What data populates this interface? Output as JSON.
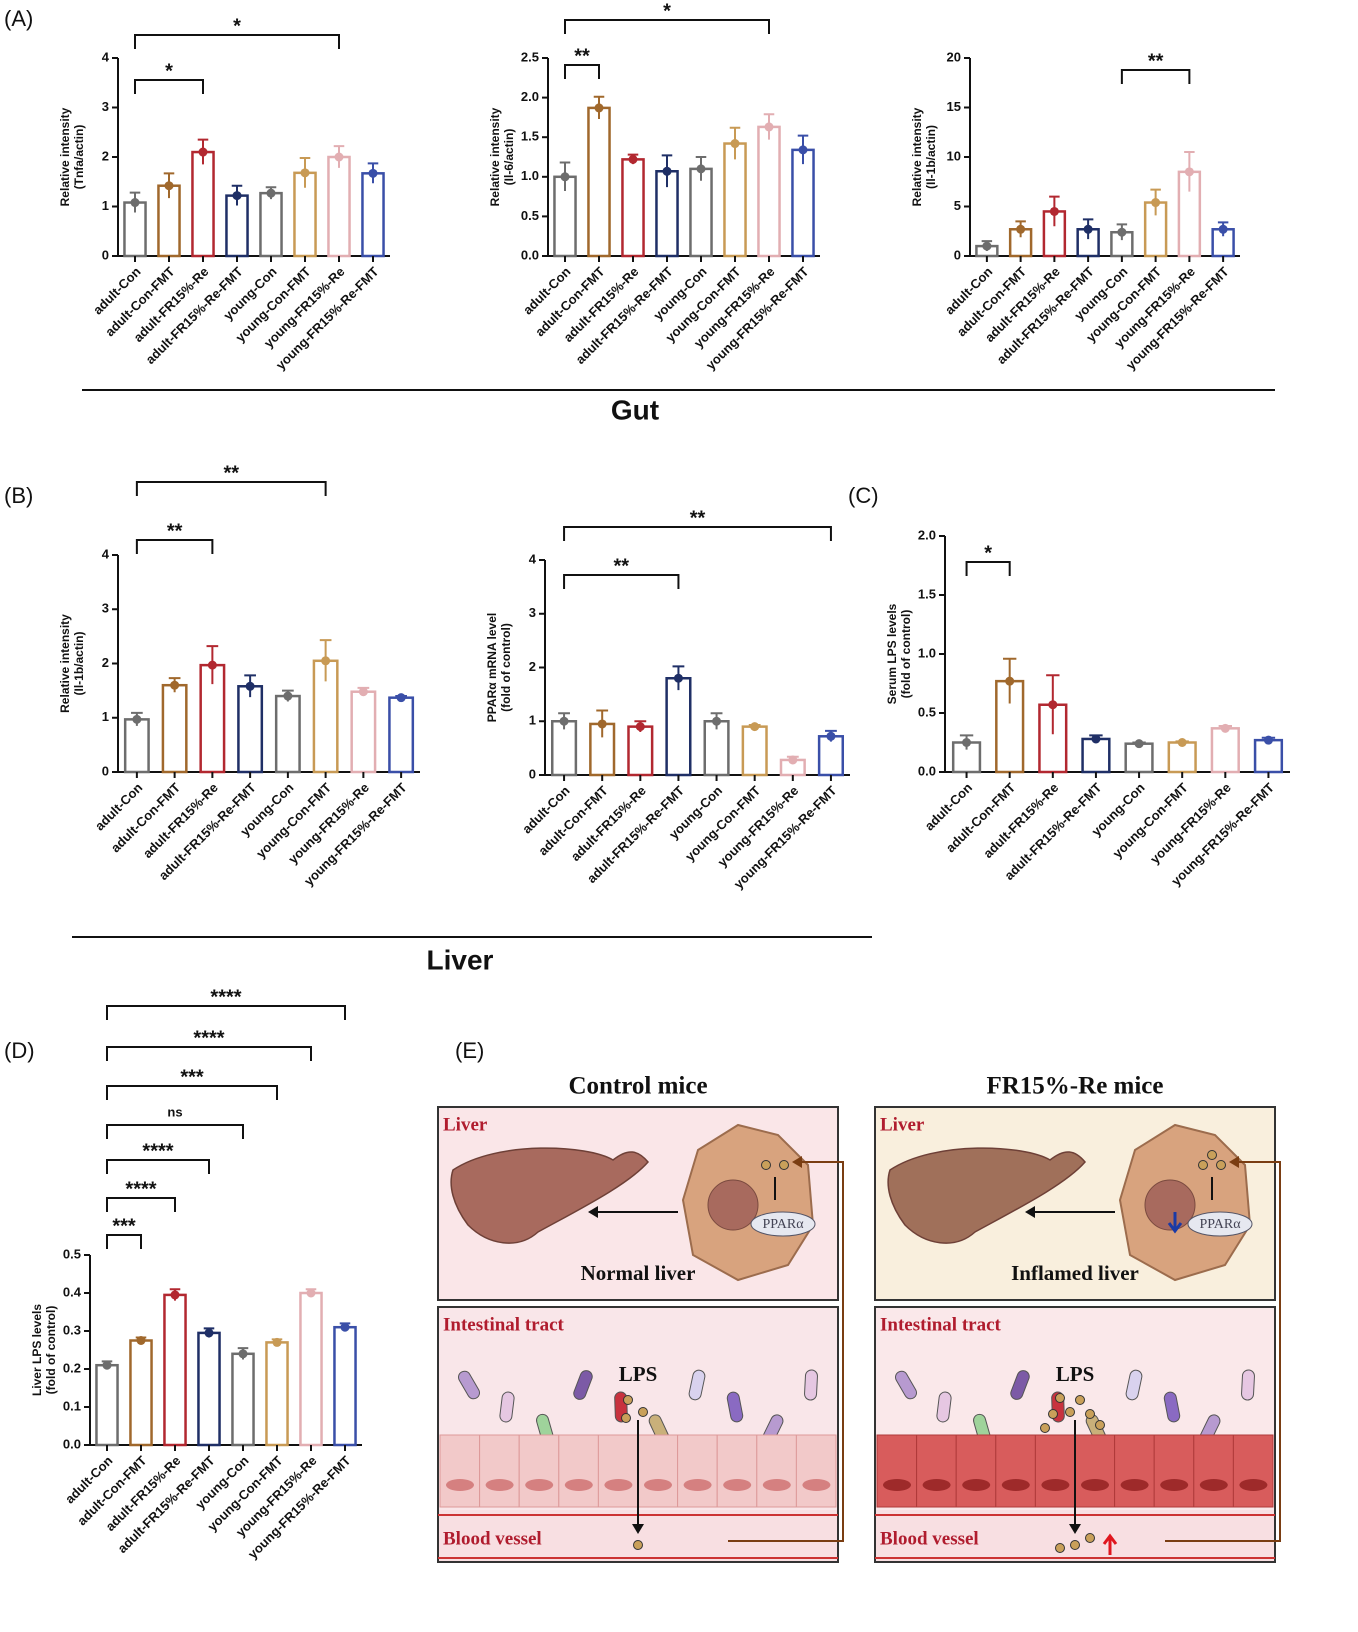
{
  "panel_labels": [
    "(A)",
    "(B)",
    "(C)",
    "(D)",
    "(E)"
  ],
  "section_labels": [
    "Gut",
    "Liver"
  ],
  "chart_data": [
    {
      "type": "bar",
      "ylabel": [
        "Relative intensity",
        "(Tnfa/actin)"
      ],
      "categories": [
        "adult-Con",
        "adult-Con-FMT",
        "adult-FR15%-Re",
        "adult-FR15%-Re-FMT",
        "young-Con",
        "young-Con-FMT",
        "young-FR15%-Re",
        "young-FR15%-Re-FMT"
      ],
      "colors": [
        "#6d6d6d",
        "#a0682c",
        "#b22830",
        "#1f2f66",
        "#6d6d6d",
        "#c89a55",
        "#e2aeb2",
        "#3a4fa8"
      ],
      "values": [
        1.08,
        1.42,
        2.1,
        1.22,
        1.27,
        1.68,
        2.0,
        1.67
      ],
      "errors": [
        0.2,
        0.25,
        0.25,
        0.2,
        0.12,
        0.3,
        0.22,
        0.2
      ],
      "ylim": [
        0,
        4
      ],
      "yticks": [
        0,
        1,
        2,
        3,
        4
      ],
      "annotations": [
        {
          "from": 0,
          "to": 2,
          "label": "*"
        },
        {
          "from": 0,
          "to": 6,
          "label": "*"
        }
      ]
    },
    {
      "type": "bar",
      "ylabel": [
        "Relative intensity",
        "(Il-6/actin)"
      ],
      "categories": [
        "adult-Con",
        "adult-Con-FMT",
        "adult-FR15%-Re",
        "adult-FR15%-Re-FMT",
        "young-Con",
        "young-Con-FMT",
        "young-FR15%-Re",
        "young-FR15%-Re-FMT"
      ],
      "colors": [
        "#6d6d6d",
        "#a0682c",
        "#b22830",
        "#1f2f66",
        "#6d6d6d",
        "#c89a55",
        "#e2aeb2",
        "#3a4fa8"
      ],
      "values": [
        1.0,
        1.87,
        1.22,
        1.07,
        1.1,
        1.42,
        1.63,
        1.34
      ],
      "errors": [
        0.18,
        0.14,
        0.06,
        0.2,
        0.15,
        0.2,
        0.16,
        0.18
      ],
      "ylim": [
        0,
        2.5
      ],
      "yticks": [
        {
          "value": 0,
          "label": "0.0"
        },
        0.5,
        {
          "value": 1,
          "label": "1.0"
        },
        1.5,
        {
          "value": 2,
          "label": "2.0"
        },
        2.5
      ],
      "annotations": [
        {
          "from": 0,
          "to": 1,
          "label": "**"
        },
        {
          "from": 0,
          "to": 6,
          "label": "*"
        }
      ]
    },
    {
      "type": "bar",
      "ylabel": [
        "Relative intensity",
        "(Il-1b/actin)"
      ],
      "categories": [
        "adult-Con",
        "adult-Con-FMT",
        "adult-FR15%-Re",
        "adult-FR15%-Re-FMT",
        "young-Con",
        "young-Con-FMT",
        "young-FR15%-Re",
        "young-FR15%-Re-FMT"
      ],
      "colors": [
        "#6d6d6d",
        "#a0682c",
        "#b22830",
        "#1f2f66",
        "#6d6d6d",
        "#c89a55",
        "#e2aeb2",
        "#3a4fa8"
      ],
      "values": [
        1.0,
        2.7,
        4.5,
        2.7,
        2.4,
        5.4,
        8.5,
        2.7
      ],
      "errors": [
        0.5,
        0.8,
        1.5,
        1.0,
        0.8,
        1.3,
        2.0,
        0.7
      ],
      "ylim": [
        0,
        20
      ],
      "yticks": [
        0,
        5,
        10,
        15,
        20
      ],
      "annotations": [
        {
          "from": 4,
          "to": 6,
          "label": "**"
        }
      ]
    },
    {
      "type": "bar",
      "ylabel": [
        "Relative intensity",
        "(Il-1b/actin)"
      ],
      "categories": [
        "adult-Con",
        "adult-Con-FMT",
        "adult-FR15%-Re",
        "adult-FR15%-Re-FMT",
        "young-Con",
        "young-Con-FMT",
        "young-FR15%-Re",
        "young-FR15%-Re-FMT"
      ],
      "colors": [
        "#6d6d6d",
        "#a0682c",
        "#b22830",
        "#1f2f66",
        "#6d6d6d",
        "#c89a55",
        "#e2aeb2",
        "#3a4fa8"
      ],
      "values": [
        0.97,
        1.6,
        1.97,
        1.58,
        1.4,
        2.05,
        1.48,
        1.37
      ],
      "errors": [
        0.12,
        0.13,
        0.35,
        0.2,
        0.1,
        0.38,
        0.07,
        0.03
      ],
      "ylim": [
        0,
        4
      ],
      "yticks": [
        0,
        1,
        2,
        3,
        4
      ],
      "annotations": [
        {
          "from": 0,
          "to": 2,
          "label": "**"
        },
        {
          "from": 0,
          "to": 5,
          "label": "**"
        }
      ]
    },
    {
      "type": "bar",
      "ylabel": [
        "PPARα mRNA level",
        "(fold of control)"
      ],
      "categories": [
        "adult-Con",
        "adult-Con-FMT",
        "adult-FR15%-Re",
        "adult-FR15%-Re-FMT",
        "young-Con",
        "young-Con-FMT",
        "young-FR15%-Re",
        "young-FR15%-Re-FMT"
      ],
      "colors": [
        "#6d6d6d",
        "#a0682c",
        "#b22830",
        "#1f2f66",
        "#6d6d6d",
        "#c89a55",
        "#e2aeb2",
        "#3a4fa8"
      ],
      "values": [
        1.0,
        0.95,
        0.9,
        1.8,
        1.0,
        0.9,
        0.28,
        0.72
      ],
      "errors": [
        0.15,
        0.25,
        0.1,
        0.22,
        0.15,
        0.03,
        0.06,
        0.1
      ],
      "ylim": [
        0,
        4
      ],
      "yticks": [
        0,
        1,
        2,
        3,
        4
      ],
      "annotations": [
        {
          "from": 0,
          "to": 3,
          "label": "**"
        },
        {
          "from": 0,
          "to": 7,
          "label": "**"
        }
      ]
    },
    {
      "type": "bar",
      "ylabel": [
        "Serum LPS levels",
        "(fold of control)"
      ],
      "categories": [
        "adult-Con",
        "adult-Con-FMT",
        "adult-FR15%-Re",
        "adult-FR15%-Re-FMT",
        "young-Con",
        "young-Con-FMT",
        "young-FR15%-Re",
        "young-FR15%-Re-FMT"
      ],
      "colors": [
        "#6d6d6d",
        "#a0682c",
        "#b22830",
        "#1f2f66",
        "#6d6d6d",
        "#c89a55",
        "#e2aeb2",
        "#3a4fa8"
      ],
      "values": [
        0.25,
        0.77,
        0.57,
        0.28,
        0.24,
        0.25,
        0.37,
        0.27
      ],
      "errors": [
        0.06,
        0.19,
        0.25,
        0.03,
        0.01,
        0.01,
        0.02,
        0.02
      ],
      "ylim": [
        0,
        2
      ],
      "yticks": [
        {
          "value": 0,
          "label": "0.0"
        },
        0.5,
        {
          "value": 1,
          "label": "1.0"
        },
        1.5,
        {
          "value": 2,
          "label": "2.0"
        }
      ],
      "annotations": [
        {
          "from": 0,
          "to": 1,
          "label": "*"
        }
      ]
    },
    {
      "type": "bar",
      "ylabel": [
        "Liver LPS levels",
        "(fold of control)"
      ],
      "categories": [
        "adult-Con",
        "adult-Con-FMT",
        "adult-FR15%-Re",
        "adult-FR15%-Re-FMT",
        "young-Con",
        "young-Con-FMT",
        "young-FR15%-Re",
        "young-FR15%-Re-FMT"
      ],
      "colors": [
        "#6d6d6d",
        "#a0682c",
        "#b22830",
        "#1f2f66",
        "#6d6d6d",
        "#c89a55",
        "#e2aeb2",
        "#3a4fa8"
      ],
      "values": [
        0.21,
        0.275,
        0.395,
        0.295,
        0.24,
        0.27,
        0.4,
        0.31
      ],
      "errors": [
        0.01,
        0.008,
        0.015,
        0.012,
        0.015,
        0.008,
        0.01,
        0.01
      ],
      "ylim": [
        0,
        0.5
      ],
      "yticks": [
        {
          "value": 0,
          "label": "0.0"
        },
        0.1,
        0.2,
        0.3,
        0.4,
        0.5
      ],
      "annotations": [
        {
          "from": 0,
          "to": 1,
          "label": "***"
        },
        {
          "from": 0,
          "to": 2,
          "label": "****"
        },
        {
          "from": 0,
          "to": 3,
          "label": "****"
        },
        {
          "from": 0,
          "to": 4,
          "label": "ns"
        },
        {
          "from": 0,
          "to": 5,
          "label": "***"
        },
        {
          "from": 0,
          "to": 6,
          "label": "****"
        },
        {
          "from": 0,
          "to": 7,
          "label": "****"
        }
      ]
    }
  ],
  "diagram": {
    "columns": [
      {
        "title": "Control mice",
        "liver_label": "Liver",
        "receptor": "PPARα",
        "state": "Normal liver",
        "gut_label": "Intestinal tract",
        "lps": "LPS",
        "vessel": "Blood vessel"
      },
      {
        "title": "FR15%-Re mice",
        "liver_label": "Liver",
        "receptor": "PPARα",
        "state": "Inflamed liver",
        "gut_label": "Intestinal tract",
        "lps": "LPS",
        "vessel": "Blood vessel"
      }
    ]
  }
}
